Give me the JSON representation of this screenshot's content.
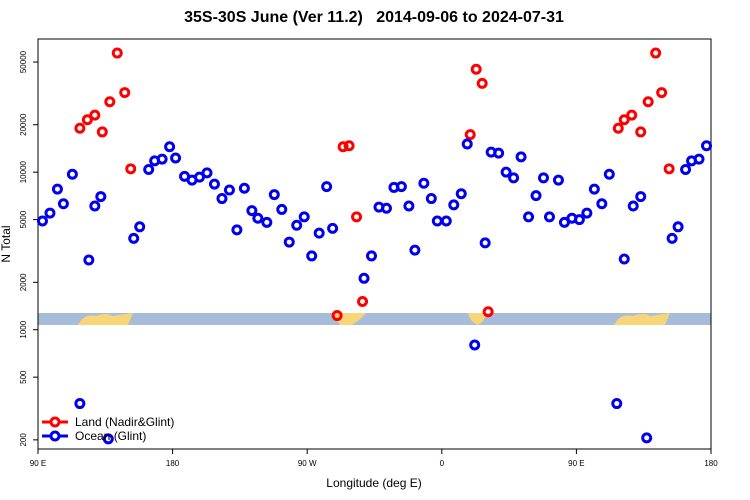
{
  "chart_data": {
    "type": "scatter",
    "title": "35S-30S June (Ver 11.2)   2014-09-06 to 2024-07-31",
    "x_label": "Longitude (deg E)",
    "y_label": "N Total",
    "xlim": [
      90,
      540
    ],
    "xticks": [
      {
        "value": 90,
        "label": "90 E"
      },
      180,
      {
        "value": 270,
        "label": "90 W"
      },
      {
        "value": 360,
        "label": "0"
      },
      {
        "value": 450,
        "label": "90 E"
      },
      {
        "value": 540,
        "label": "180"
      }
    ],
    "ylim": [
      175,
      70000
    ],
    "log_y": true,
    "yticks": [
      200,
      500,
      1000,
      2000,
      5000,
      10000,
      20000,
      50000
    ],
    "legend": "bottom-left",
    "series": [
      {
        "name": "Land (Nadir&Glint)",
        "color": "#ff0000",
        "x": [
          118,
          123,
          128,
          133,
          138,
          143,
          148,
          152,
          290,
          294,
          298,
          303,
          307,
          379,
          383,
          387,
          391,
          478,
          482,
          487,
          493,
          498,
          503,
          507,
          512
        ],
        "values": [
          19000,
          21500,
          23000,
          18000,
          28000,
          57000,
          32000,
          10500,
          1230,
          14500,
          14700,
          5200,
          1510,
          17300,
          45000,
          36600,
          1300,
          19000,
          21500,
          23000,
          18000,
          28000,
          57000,
          32000,
          10500
        ]
      },
      {
        "name": "Ocean (Glint)",
        "color": "#0000ee",
        "x": [
          93,
          98,
          103,
          107,
          113,
          118,
          124,
          128,
          132,
          137,
          154,
          158,
          164,
          168,
          173,
          178,
          182,
          188,
          193,
          198,
          203,
          208,
          213,
          218,
          223,
          228,
          233,
          237,
          243,
          248,
          253,
          258,
          263,
          268,
          273,
          278,
          283,
          287,
          308,
          313,
          318,
          323,
          328,
          333,
          338,
          342,
          348,
          353,
          357,
          363,
          368,
          373,
          377,
          382,
          389,
          393,
          398,
          403,
          408,
          413,
          418,
          423,
          428,
          432,
          438,
          442,
          447,
          452,
          457,
          462,
          467,
          472,
          477,
          482,
          488,
          493,
          497,
          514,
          518,
          523,
          527,
          532,
          537
        ],
        "values": [
          4900,
          5500,
          7800,
          6300,
          9700,
          340,
          2770,
          6100,
          7000,
          203,
          3800,
          4500,
          10400,
          11800,
          12100,
          14500,
          12300,
          9400,
          8900,
          9300,
          9900,
          8400,
          6800,
          7700,
          4300,
          7900,
          5700,
          5100,
          4800,
          7200,
          5800,
          3600,
          4600,
          5200,
          2940,
          4100,
          8100,
          4400,
          2120,
          2940,
          6000,
          5900,
          8000,
          8100,
          6100,
          3200,
          8500,
          6800,
          4900,
          4900,
          6200,
          7300,
          15100,
          800,
          3560,
          13400,
          13200,
          10000,
          9200,
          12500,
          5200,
          7100,
          9200,
          5200,
          8900,
          4800,
          5100,
          5000,
          5500,
          7800,
          6300,
          9700,
          340,
          2810,
          6100,
          7000,
          206,
          3800,
          4500,
          10400,
          11800,
          12100,
          14700
        ]
      }
    ]
  }
}
